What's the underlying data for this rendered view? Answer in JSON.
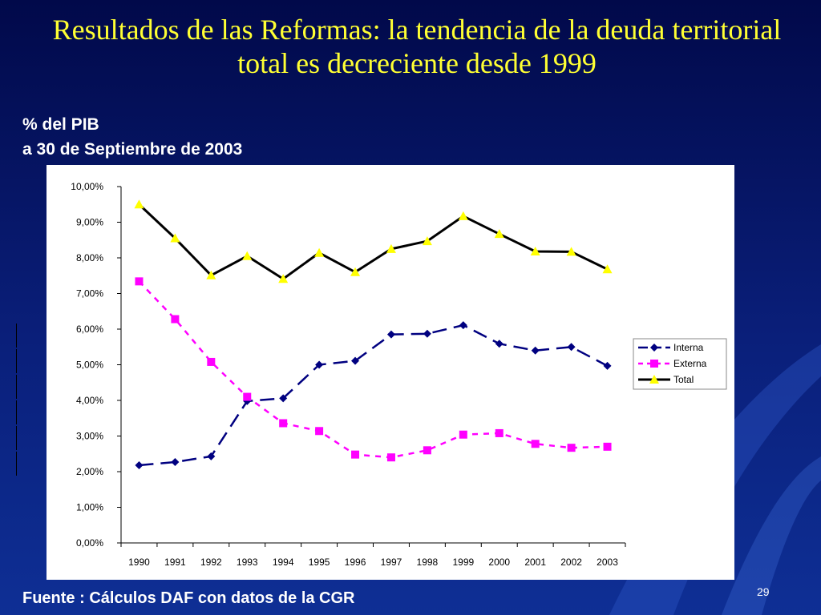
{
  "slide": {
    "title": "Resultados de las Reformas: la tendencia de la deuda territorial total es decreciente desde 1999",
    "units_line1": "% del PIB",
    "units_line2": "a  30 de Septiembre de  2003",
    "source": "Fuente : Cálculos DAF con datos de la CGR",
    "page_number": "29"
  },
  "chart_data": {
    "type": "line",
    "x": [
      "1990",
      "1991",
      "1992",
      "1993",
      "1994",
      "1995",
      "1996",
      "1997",
      "1998",
      "1999",
      "2000",
      "2001",
      "2002",
      "2003"
    ],
    "ylim": [
      0,
      10
    ],
    "yticks": [
      "0,00%",
      "1,00%",
      "2,00%",
      "3,00%",
      "4,00%",
      "5,00%",
      "6,00%",
      "7,00%",
      "8,00%",
      "9,00%",
      "10,00%"
    ],
    "grid": false,
    "legend_position": "right",
    "series": [
      {
        "name": "Interna",
        "color": "#000080",
        "marker": "diamond",
        "dash": "long-dash",
        "values": [
          2.18,
          2.27,
          2.43,
          3.98,
          4.06,
          5.0,
          5.11,
          5.85,
          5.87,
          6.11,
          5.59,
          5.4,
          5.5,
          4.97
        ]
      },
      {
        "name": "Externa",
        "color": "#ff00ff",
        "marker": "square",
        "dash": "short-dash",
        "values": [
          7.34,
          6.28,
          5.08,
          4.1,
          3.36,
          3.14,
          2.48,
          2.4,
          2.6,
          3.04,
          3.08,
          2.78,
          2.67,
          2.7
        ]
      },
      {
        "name": "Total",
        "color": "#000000",
        "marker": "triangle",
        "marker_color": "#ffff00",
        "dash": "solid",
        "values": [
          9.5,
          8.55,
          7.51,
          8.05,
          7.41,
          8.14,
          7.6,
          8.25,
          8.47,
          9.17,
          8.67,
          8.18,
          8.17,
          7.68
        ]
      }
    ]
  }
}
